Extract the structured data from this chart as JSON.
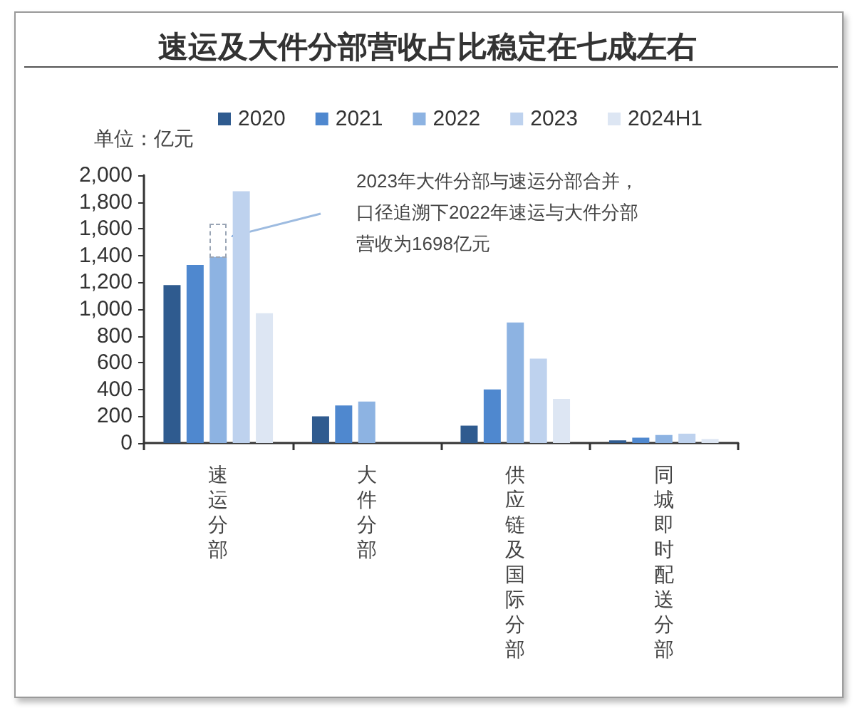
{
  "chart_data": {
    "type": "bar",
    "title": "速运及大件分部营收占比稳定在七成左右",
    "ylabel": "单位：亿元",
    "categories": [
      "速运分部",
      "大件分部",
      "供应链及国际分部",
      "同城即时配送分部"
    ],
    "series": [
      {
        "name": "2020",
        "color": "#2f5b8f",
        "values": [
          1180,
          200,
          130,
          20
        ]
      },
      {
        "name": "2021",
        "color": "#4f88cf",
        "values": [
          1330,
          280,
          400,
          40
        ]
      },
      {
        "name": "2022",
        "color": "#8db3e2",
        "values": [
          1390,
          310,
          900,
          60
        ]
      },
      {
        "name": "2023",
        "color": "#bed2ee",
        "values": [
          1880,
          null,
          630,
          70
        ]
      },
      {
        "name": "2024H1",
        "color": "#dde6f3",
        "values": [
          970,
          null,
          330,
          30
        ]
      }
    ],
    "ylim": [
      0,
      2000
    ],
    "yticks": [
      0,
      200,
      400,
      600,
      800,
      {
        "value": 1000,
        "label": "1,000"
      },
      {
        "value": 1200,
        "label": "1,200"
      },
      {
        "value": 1400,
        "label": "1,400"
      },
      {
        "value": 1600,
        "label": "1,600"
      },
      {
        "value": 1800,
        "label": "1,800"
      },
      {
        "value": 2000,
        "label": "2,000"
      }
    ],
    "annotations": [
      "2023年大件分部与速运分部合并，口径追溯下2022年速运与大件分部营收为1698亿元"
    ],
    "grid": false,
    "legend": "top"
  }
}
